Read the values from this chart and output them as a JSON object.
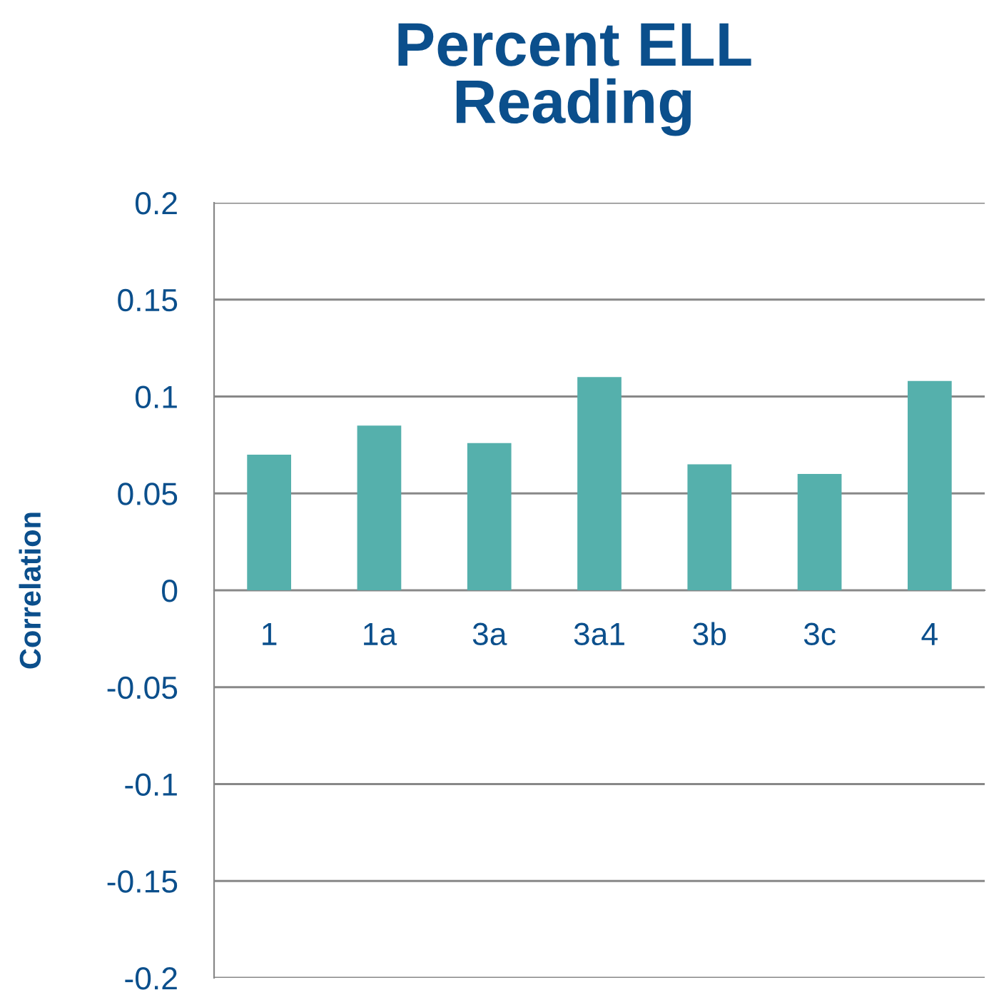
{
  "chart_data": {
    "type": "bar",
    "title": "Percent ELL\nReading",
    "ylabel": "Correlation",
    "categories": [
      "1",
      "1a",
      "3a",
      "3a1",
      "3b",
      "3c",
      "4"
    ],
    "values": [
      0.07,
      0.085,
      0.076,
      0.11,
      0.065,
      0.06,
      0.108
    ],
    "color": "#55b0ac",
    "ylim": [
      -0.2,
      0.2
    ],
    "yticks": [
      -0.2,
      -0.15,
      -0.1,
      -0.05,
      0,
      0.05,
      0.1,
      0.15,
      0.2
    ],
    "grid": "y"
  }
}
